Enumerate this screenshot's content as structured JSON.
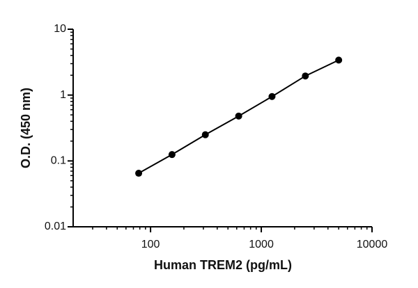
{
  "chart_data": {
    "type": "line",
    "xlabel": "Human TREM2 (pg/mL)",
    "ylabel": "O.D. (450 nm)",
    "xscale": "log",
    "yscale": "log",
    "xlim": [
      20,
      10000
    ],
    "ylim": [
      0.01,
      10
    ],
    "xticks": [
      100,
      1000,
      10000
    ],
    "yticks": [
      0.01,
      0.1,
      1,
      10
    ],
    "xminorticks": [
      30,
      40,
      50,
      60,
      70,
      80,
      90,
      200,
      300,
      400,
      500,
      600,
      700,
      800,
      900,
      2000,
      3000,
      4000,
      5000,
      6000,
      7000,
      8000,
      9000
    ],
    "yminorticks": [
      0.02,
      0.03,
      0.04,
      0.05,
      0.06,
      0.07,
      0.08,
      0.09,
      0.2,
      0.3,
      0.4,
      0.5,
      0.6,
      0.7,
      0.8,
      0.9,
      2,
      3,
      4,
      5,
      6,
      7,
      8,
      9
    ],
    "x": [
      78.125,
      156.25,
      312.5,
      625,
      1250,
      2500,
      5000
    ],
    "values": [
      0.065,
      0.125,
      0.25,
      0.48,
      0.95,
      1.95,
      3.4
    ],
    "color": "#000000"
  }
}
